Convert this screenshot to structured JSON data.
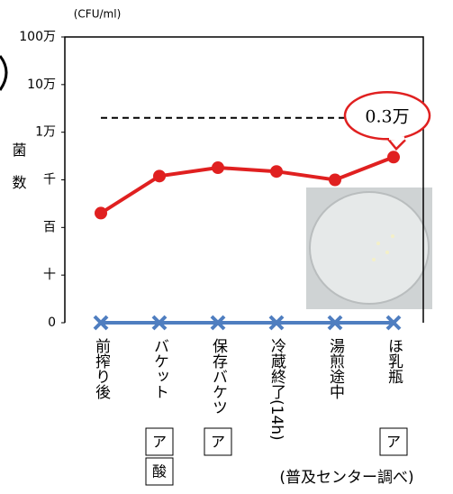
{
  "chart_data": {
    "type": "line",
    "unit_label": "(CFU/ml)",
    "y_label": "菌数",
    "log_scale": true,
    "ylim": [
      1,
      1000000
    ],
    "yticks": [
      {
        "value": 1,
        "label": "0"
      },
      {
        "value": 10,
        "label": "十"
      },
      {
        "value": 100,
        "label": "百"
      },
      {
        "value": 1000,
        "label": "千"
      },
      {
        "value": 10000,
        "label": "1万"
      },
      {
        "value": 100000,
        "label": "10万"
      },
      {
        "value": 1000000,
        "label": "100万"
      }
    ],
    "categories": [
      "前搾り後",
      "バケット",
      "保存バケツ",
      "冷蔵終了(14h)",
      "湯煎途中",
      "ほ乳瓶"
    ],
    "series": [
      {
        "color": "#e02020",
        "marker": "circle",
        "values": [
          200,
          1200,
          1800,
          1500,
          1000,
          3000
        ],
        "value_labels": [
          null,
          null,
          null,
          null,
          null,
          "0.3万"
        ]
      },
      {
        "color": "#4f7ec0",
        "marker": "x",
        "values": [
          1,
          1,
          1,
          1,
          1,
          1
        ]
      }
    ],
    "reference_line": 20000,
    "category_notes": [
      [],
      [
        "ア",
        "酸"
      ],
      [
        "ア"
      ],
      [],
      [],
      [
        "ア"
      ]
    ],
    "source": "(普及センター調べ)"
  }
}
